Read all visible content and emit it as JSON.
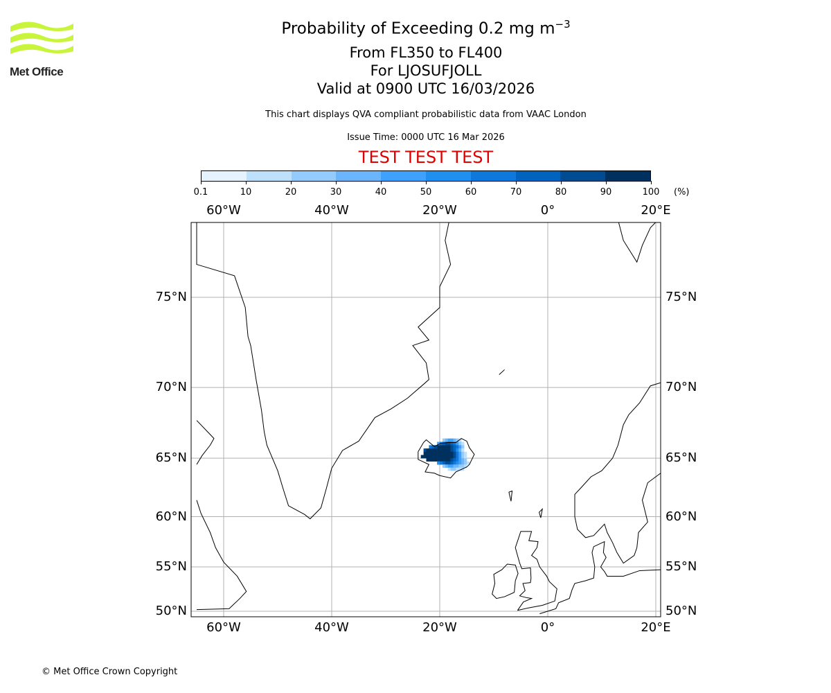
{
  "logo": {
    "text": "Met Office",
    "color": "#c8f53c"
  },
  "header": {
    "title_main": "Probability of Exceeding 0.2 mg m",
    "title_sup": "−3",
    "line2": "From FL350 to FL400",
    "line3": "For LJOSUFJOLL",
    "line4": "Valid at 0900 UTC 16/03/2026",
    "subtitle": "This chart displays QVA compliant probabilistic data from VAAC London",
    "issue_time": "Issue Time: 0000 UTC 16 Mar 2026",
    "test_banner": "TEST TEST TEST",
    "test_color": "#e00000"
  },
  "colorbar": {
    "ticks": [
      "0.1",
      "10",
      "20",
      "30",
      "40",
      "50",
      "60",
      "70",
      "80",
      "90",
      "100"
    ],
    "unit": "(%)",
    "colors": [
      "#e6f3fe",
      "#bde0fd",
      "#94cbfd",
      "#6bb5fd",
      "#3ea1fd",
      "#2090f0",
      "#0e78dc",
      "#0064bf",
      "#004c93",
      "#00305e"
    ]
  },
  "footer": {
    "copyright": "© Met Office Crown Copyright"
  },
  "chart_data": {
    "type": "heatmap",
    "projection": "mercator",
    "lon_range": [
      -65,
      21
    ],
    "lat_range": [
      49.7,
      79.7
    ],
    "lon_ticks": [
      {
        "v": -60,
        "label": "60°W"
      },
      {
        "v": -40,
        "label": "40°W"
      },
      {
        "v": -20,
        "label": "20°W"
      },
      {
        "v": 0,
        "label": "0°"
      },
      {
        "v": 20,
        "label": "20°E"
      }
    ],
    "lat_ticks": [
      {
        "v": 75,
        "label": "75°N"
      },
      {
        "v": 70,
        "label": "70°N"
      },
      {
        "v": 65,
        "label": "65°N"
      },
      {
        "v": 60,
        "label": "60°N"
      },
      {
        "v": 55,
        "label": "55°N"
      },
      {
        "v": 50,
        "label": "50°N"
      }
    ],
    "grid": true,
    "cell_lon_step": 0.5,
    "cell_lat_step": 0.25,
    "probability_rows": [
      {
        "lat": 66.25,
        "lon_start": -19.5,
        "values": [
          20,
          30,
          40,
          40,
          30,
          20,
          10
        ]
      },
      {
        "lat": 66.0,
        "lon_start": -20.5,
        "values": [
          40,
          60,
          70,
          80,
          80,
          70,
          60,
          40,
          20,
          10
        ]
      },
      {
        "lat": 65.75,
        "lon_start": -22,
        "values": [
          60,
          70,
          80,
          90,
          90,
          90,
          90,
          90,
          80,
          70,
          60,
          40,
          20
        ]
      },
      {
        "lat": 65.5,
        "lon_start": -23,
        "values": [
          80,
          90,
          100,
          100,
          100,
          100,
          100,
          100,
          100,
          90,
          80,
          70,
          50,
          30,
          10
        ]
      },
      {
        "lat": 65.25,
        "lon_start": -23,
        "values": [
          90,
          100,
          100,
          100,
          100,
          100,
          100,
          100,
          100,
          100,
          90,
          80,
          60,
          40,
          20,
          10
        ]
      },
      {
        "lat": 65.0,
        "lon_start": -23.5,
        "values": [
          100,
          100,
          100,
          100,
          100,
          100,
          100,
          100,
          100,
          100,
          100,
          90,
          80,
          60,
          40,
          20,
          10
        ]
      },
      {
        "lat": 64.75,
        "lon_start": -22.5,
        "values": [
          90,
          100,
          100,
          100,
          100,
          100,
          100,
          100,
          90,
          80,
          70,
          60,
          40,
          30,
          20
        ]
      },
      {
        "lat": 64.5,
        "lon_start": -20.5,
        "values": [
          50,
          60,
          70,
          80,
          80,
          70,
          60,
          50,
          40,
          30,
          20,
          10
        ]
      },
      {
        "lat": 64.25,
        "lon_start": -19.5,
        "values": [
          20,
          30,
          40,
          40,
          30,
          30,
          20,
          20,
          10
        ]
      },
      {
        "lat": 64.0,
        "lon_start": -18.5,
        "values": [
          10,
          20,
          20,
          10,
          10,
          10
        ]
      }
    ]
  }
}
